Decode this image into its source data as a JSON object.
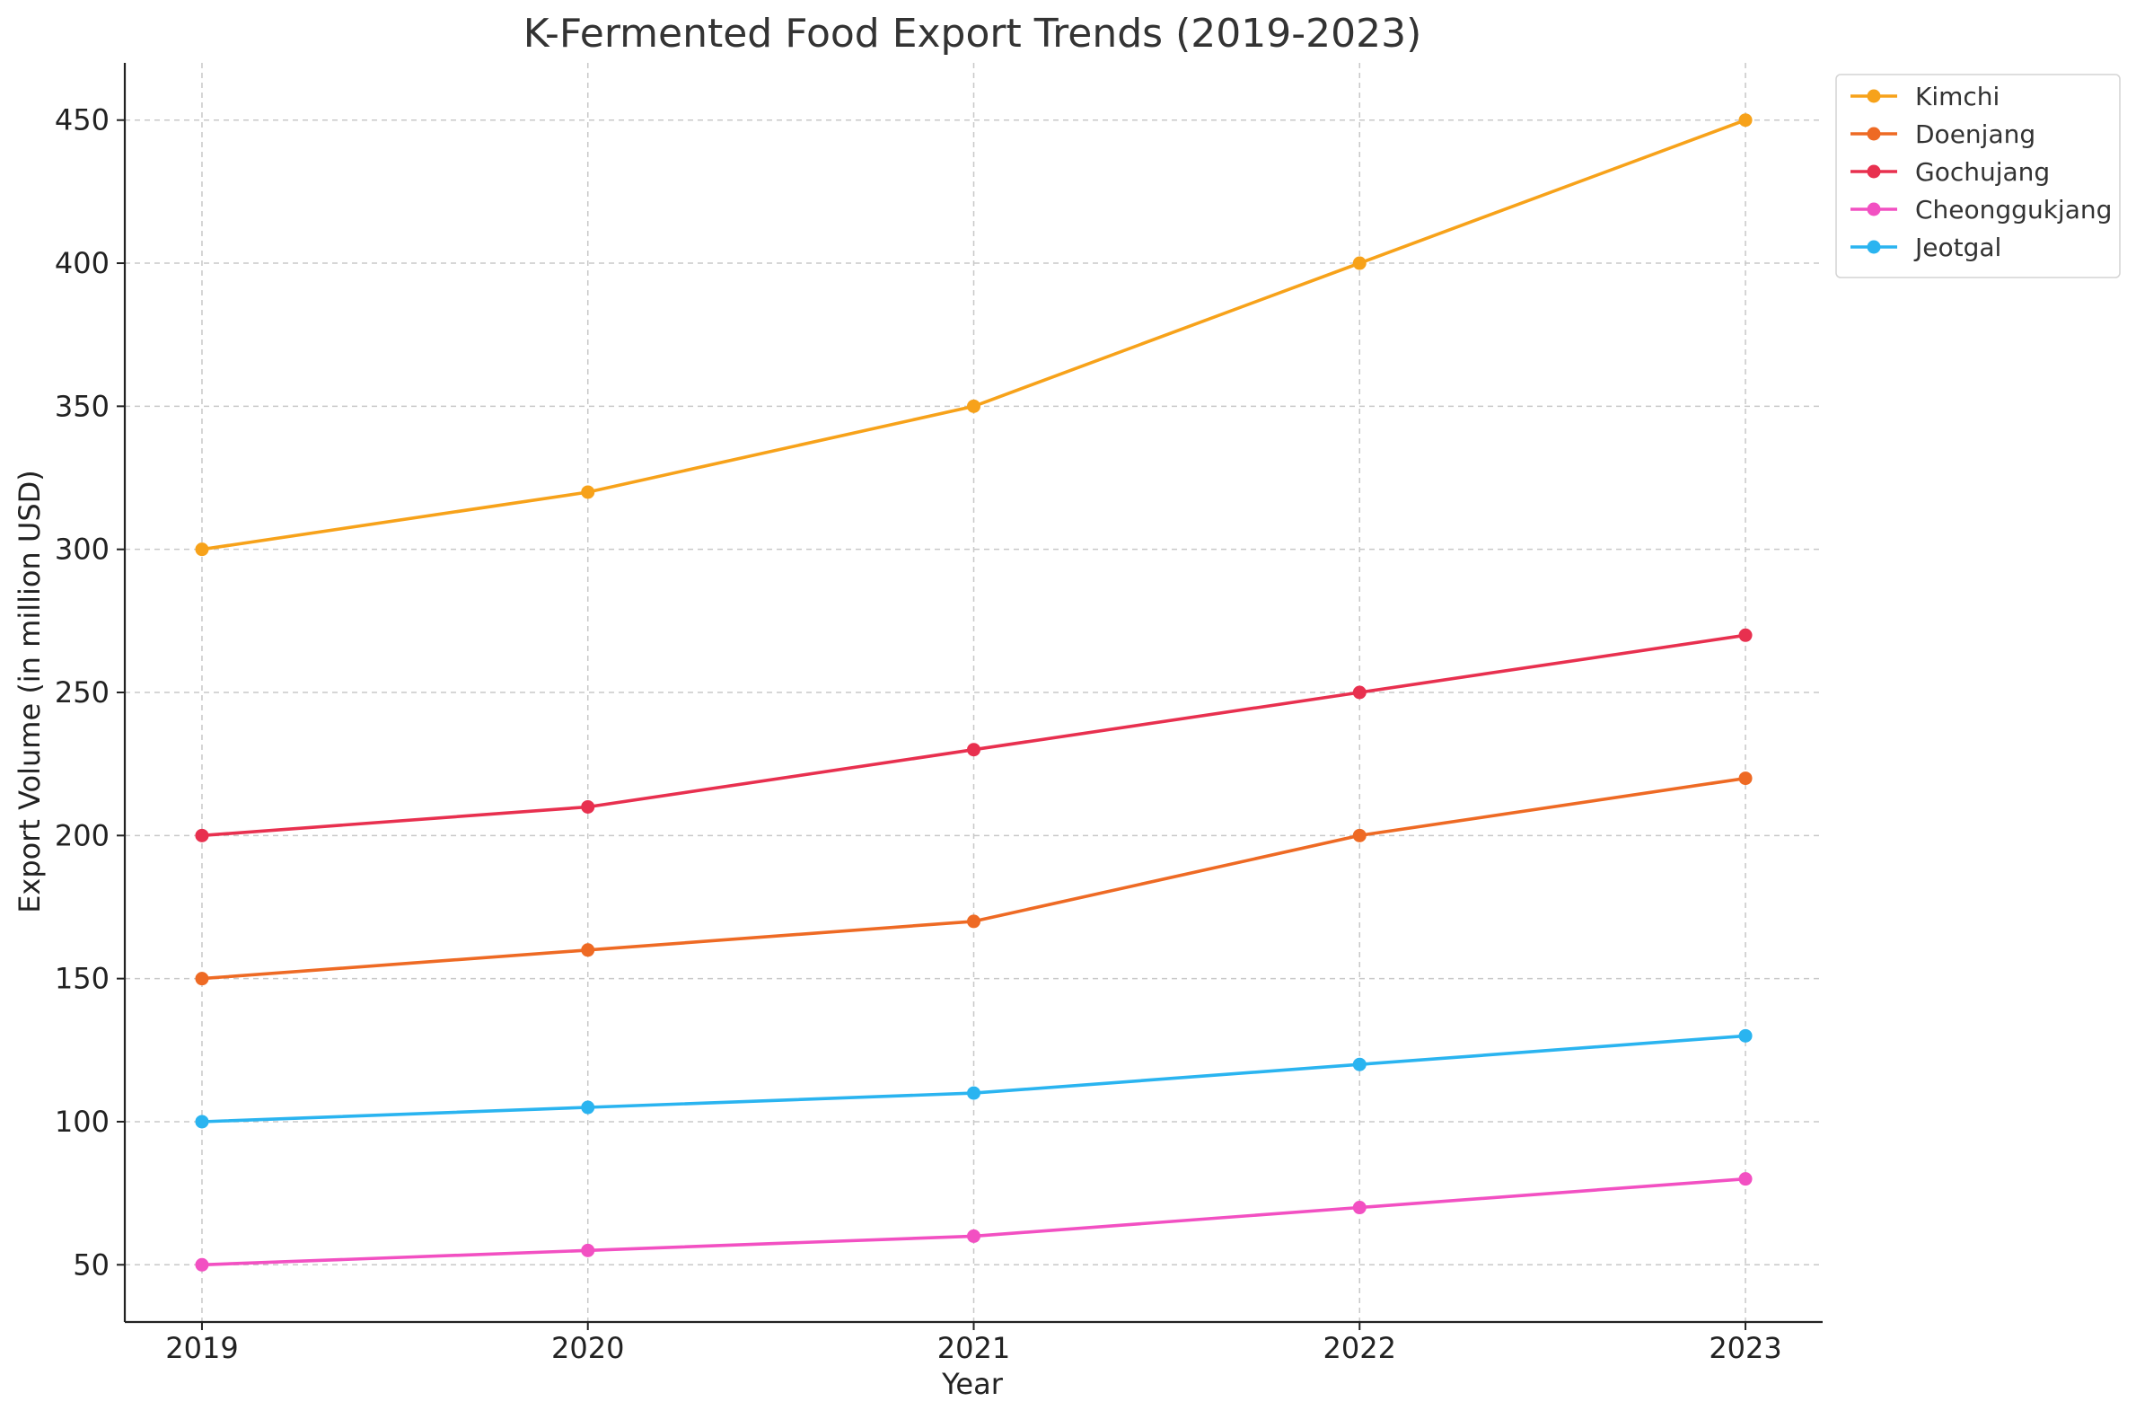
{
  "chart_data": {
    "type": "line",
    "title": "K-Fermented Food Export Trends (2019-2023)",
    "xlabel": "Year",
    "ylabel": "Export Volume (in million USD)",
    "x": [
      "2019",
      "2020",
      "2021",
      "2022",
      "2023"
    ],
    "xlim": [
      2018.8,
      2023.2
    ],
    "ylim": [
      30,
      470
    ],
    "yticks": [
      50,
      100,
      150,
      200,
      250,
      300,
      350,
      400,
      450
    ],
    "grid": true,
    "legend_position": "outside top-right",
    "series": [
      {
        "name": "Kimchi",
        "color": "#f7a21a",
        "values": [
          300,
          320,
          350,
          400,
          450
        ]
      },
      {
        "name": "Doenjang",
        "color": "#ee6a24",
        "values": [
          150,
          160,
          170,
          200,
          220
        ]
      },
      {
        "name": "Gochujang",
        "color": "#e8304f",
        "values": [
          200,
          210,
          230,
          250,
          270
        ]
      },
      {
        "name": "Cheonggukjang",
        "color": "#f250c2",
        "values": [
          50,
          55,
          60,
          70,
          80
        ]
      },
      {
        "name": "Jeotgal",
        "color": "#2ab4f0",
        "values": [
          100,
          105,
          110,
          120,
          130
        ]
      }
    ]
  }
}
